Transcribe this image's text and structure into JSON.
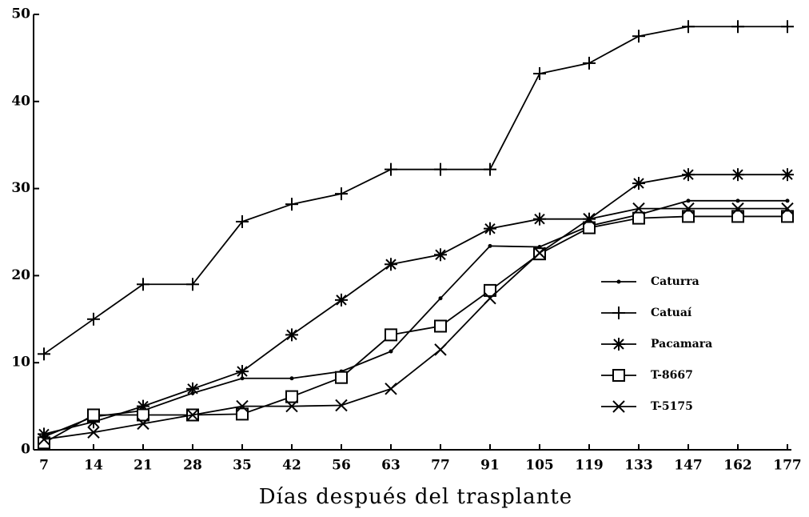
{
  "chart_data": {
    "type": "line",
    "xlabel": "Días después del trasplante",
    "categories": [
      "7",
      "14",
      "21",
      "28",
      "35",
      "42",
      "56",
      "63",
      "77",
      "91",
      "105",
      "119",
      "133",
      "147",
      "162",
      "177"
    ],
    "series": [
      {
        "name": "Caturra",
        "color": "#000000",
        "marker": "dot",
        "values": [
          1.5,
          3.8,
          4.5,
          6.5,
          8.2,
          8.2,
          9,
          11.3,
          17.4,
          23.4,
          23.3,
          25.7,
          27,
          28.6,
          28.6,
          28.6
        ]
      },
      {
        "name": "Catuaí",
        "color": "#000000",
        "marker": "plus",
        "values": [
          11,
          15,
          19,
          19,
          26.2,
          28.2,
          29.4,
          32.2,
          32.2,
          32.2,
          43.2,
          44.4,
          47.5,
          48.6,
          48.6,
          48.6
        ]
      },
      {
        "name": "Pacamara",
        "color": "#000000",
        "marker": "asterisk",
        "values": [
          1.8,
          3.2,
          5,
          7,
          9,
          13.2,
          17.2,
          21.3,
          22.4,
          25.4,
          26.5,
          26.5,
          30.6,
          31.6,
          31.6,
          31.6
        ]
      },
      {
        "name": "T-8667",
        "color": "#000000",
        "marker": "square",
        "values": [
          0.8,
          4,
          4,
          4,
          4.1,
          6.1,
          8.3,
          13.2,
          14.2,
          18.3,
          22.5,
          25.5,
          26.6,
          26.8,
          26.8,
          26.8
        ]
      },
      {
        "name": "T-5175",
        "color": "#000000",
        "marker": "cross",
        "values": [
          1.2,
          2,
          3,
          4,
          5,
          5,
          5.1,
          7,
          11.5,
          17.4,
          22.6,
          26.5,
          27.7,
          27.7,
          27.7,
          27.7
        ]
      }
    ],
    "ylim": [
      0,
      50
    ],
    "yticks": [
      0,
      10,
      20,
      30,
      40,
      50
    ],
    "grid": false,
    "legend": "lower right"
  }
}
